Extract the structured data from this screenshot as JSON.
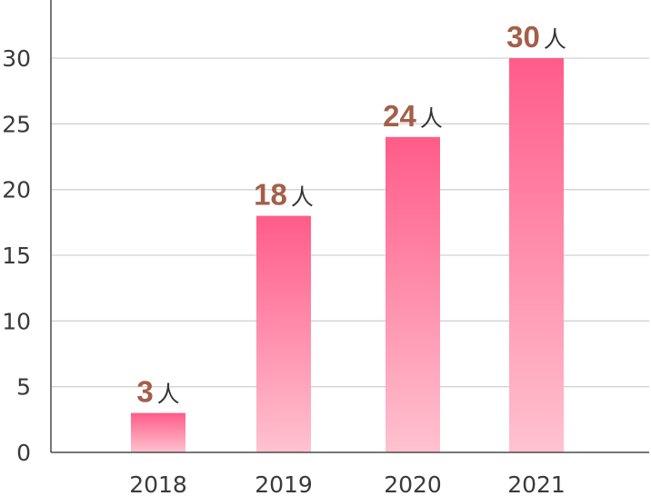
{
  "chart_data": {
    "type": "bar",
    "categories": [
      "2018",
      "2019",
      "2020",
      "2021"
    ],
    "values": [
      3,
      18,
      24,
      30
    ],
    "value_unit": "人",
    "title": "",
    "xlabel": "",
    "ylabel": "",
    "ylim": [
      0,
      30
    ],
    "yticks": [
      0,
      5,
      10,
      15,
      20,
      25,
      30
    ],
    "grid": "horizontal",
    "bar_gradient": {
      "top": "#ff5c88",
      "bottom": "#ffc2d0"
    },
    "value_label_color": "#a35f49"
  }
}
